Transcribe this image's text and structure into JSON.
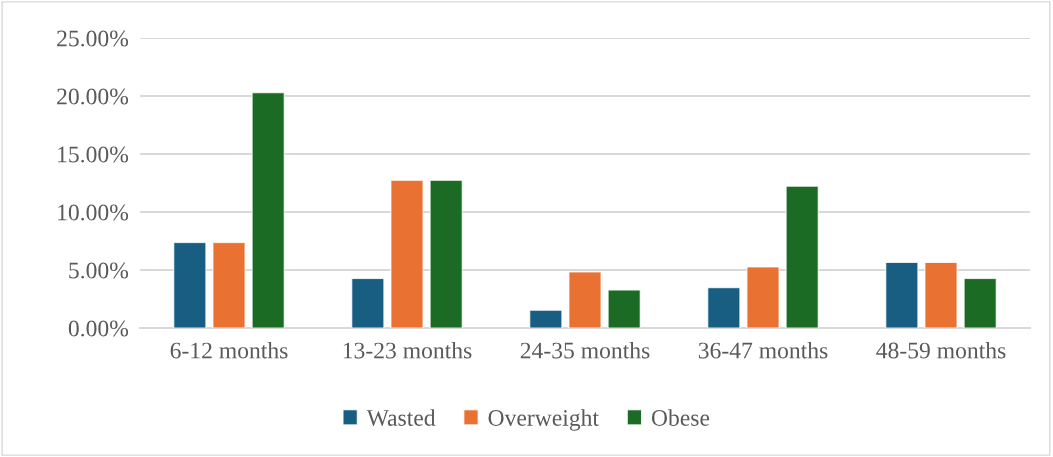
{
  "chart_data": {
    "type": "bar",
    "categories": [
      "6-12 months",
      "13-23 months",
      "24-35 months",
      "36-47 months",
      "48-59 months"
    ],
    "series": [
      {
        "name": "Wasted",
        "color": "#175e82",
        "values": [
          7.36,
          4.26,
          1.53,
          3.47,
          5.65
        ]
      },
      {
        "name": "Overweight",
        "color": "#e97132",
        "values": [
          7.36,
          12.73,
          4.83,
          5.26,
          5.65
        ]
      },
      {
        "name": "Obese",
        "color": "#1b6b25",
        "values": [
          20.28,
          12.73,
          3.27,
          12.22,
          4.26
        ]
      }
    ],
    "ylim": [
      0,
      25
    ],
    "yticks": [
      {
        "value": 0,
        "label": "0.00%"
      },
      {
        "value": 5,
        "label": "5.00%"
      },
      {
        "value": 10,
        "label": "10.00%"
      },
      {
        "value": 15,
        "label": "15.00%"
      },
      {
        "value": 20,
        "label": "20.00%"
      },
      {
        "value": 25,
        "label": "25.00%"
      }
    ],
    "grid": "y",
    "legend": "bottom"
  }
}
